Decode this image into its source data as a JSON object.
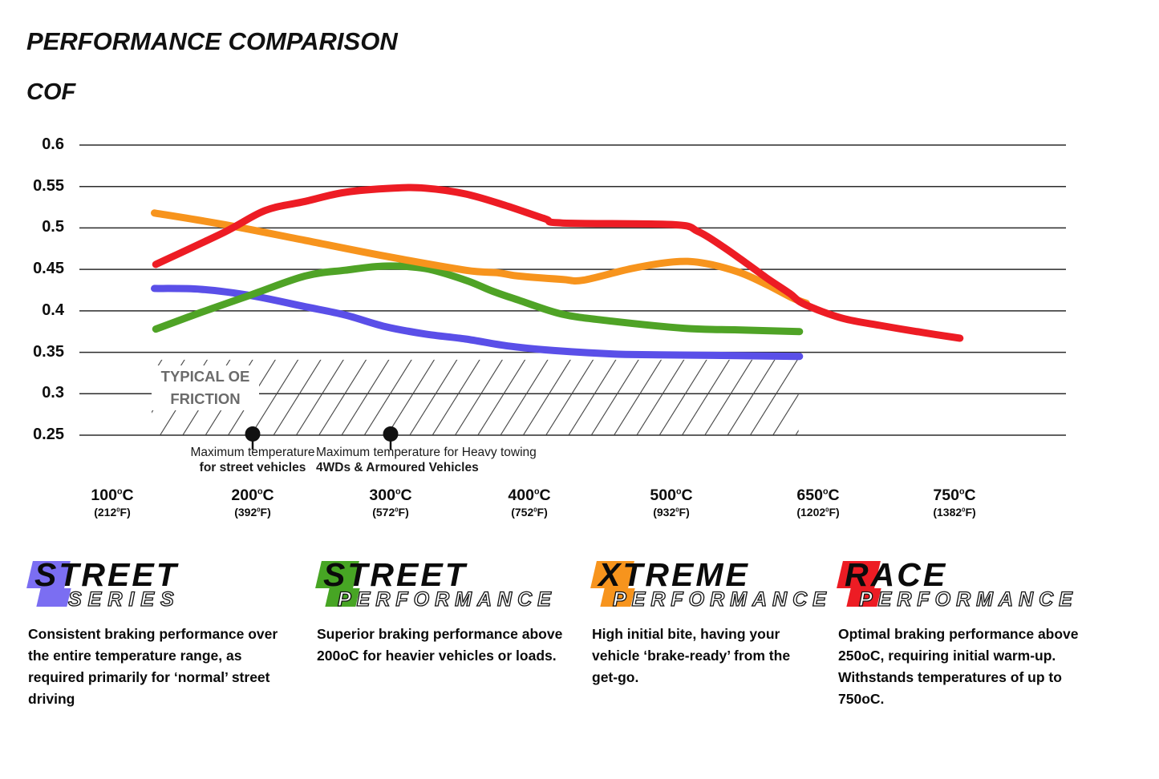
{
  "page": {
    "title": "PERFORMANCE COMPARISON",
    "y_axis_title": "COF"
  },
  "chart_data": {
    "type": "line",
    "title": "PERFORMANCE COMPARISON",
    "ylabel": "COF",
    "ylim": [
      0.25,
      0.6
    ],
    "grid": "horizontal",
    "y_ticks": [
      "0.6",
      "0.55",
      "0.5",
      "0.45",
      "0.4",
      "0.35",
      "0.3",
      "0.25"
    ],
    "y_tick_values": [
      0.6,
      0.55,
      0.5,
      0.45,
      0.4,
      0.35,
      0.3,
      0.25
    ],
    "x_tick_temps": [
      100,
      200,
      300,
      400,
      500,
      650,
      750
    ],
    "x_ticks": [
      {
        "c": "100",
        "f": "212"
      },
      {
        "c": "200",
        "f": "392"
      },
      {
        "c": "300",
        "f": "572"
      },
      {
        "c": "400",
        "f": "752"
      },
      {
        "c": "500",
        "f": "932"
      },
      {
        "c": "650",
        "f": "1202"
      },
      {
        "c": "750",
        "f": "1382"
      }
    ],
    "unit_c": {
      "sup": "o",
      "unit": "C"
    },
    "unit_f": {
      "sup": "0",
      "unit": "F",
      "open": "(",
      "close": ")"
    },
    "series": [
      {
        "name": "Street Series",
        "color": "#5a4fe8",
        "points": [
          [
            130,
            0.427
          ],
          [
            163,
            0.426
          ],
          [
            200,
            0.418
          ],
          [
            238,
            0.405
          ],
          [
            267,
            0.395
          ],
          [
            296,
            0.381
          ],
          [
            325,
            0.372
          ],
          [
            354,
            0.366
          ],
          [
            383,
            0.358
          ],
          [
            411,
            0.353
          ],
          [
            458,
            0.348
          ],
          [
            491,
            0.347
          ],
          [
            568,
            0.346
          ],
          [
            631,
            0.345
          ]
        ]
      },
      {
        "name": "Street Performance",
        "color": "#4fa326",
        "points": [
          [
            131,
            0.378
          ],
          [
            163,
            0.398
          ],
          [
            200,
            0.42
          ],
          [
            238,
            0.442
          ],
          [
            267,
            0.449
          ],
          [
            296,
            0.454
          ],
          [
            325,
            0.451
          ],
          [
            354,
            0.437
          ],
          [
            373,
            0.424
          ],
          [
            392,
            0.413
          ],
          [
            423,
            0.396
          ],
          [
            456,
            0.388
          ],
          [
            513,
            0.379
          ],
          [
            568,
            0.377
          ],
          [
            631,
            0.375
          ]
        ]
      },
      {
        "name": "Xtreme Performance",
        "color": "#f7941d",
        "points": [
          [
            130,
            0.518
          ],
          [
            180,
            0.504
          ],
          [
            238,
            0.485
          ],
          [
            296,
            0.466
          ],
          [
            354,
            0.449
          ],
          [
            377,
            0.446
          ],
          [
            392,
            0.442
          ],
          [
            423,
            0.438
          ],
          [
            438,
            0.437
          ],
          [
            472,
            0.451
          ],
          [
            502,
            0.459
          ],
          [
            531,
            0.458
          ],
          [
            568,
            0.447
          ],
          [
            597,
            0.432
          ],
          [
            623,
            0.416
          ],
          [
            638,
            0.409
          ]
        ]
      },
      {
        "name": "Race Performance",
        "color": "#ed1c24",
        "points": [
          [
            131,
            0.456
          ],
          [
            180,
            0.495
          ],
          [
            209,
            0.521
          ],
          [
            238,
            0.532
          ],
          [
            267,
            0.543
          ],
          [
            302,
            0.548
          ],
          [
            325,
            0.548
          ],
          [
            354,
            0.541
          ],
          [
            383,
            0.527
          ],
          [
            411,
            0.511
          ],
          [
            423,
            0.506
          ],
          [
            502,
            0.504
          ],
          [
            527,
            0.496
          ],
          [
            552,
            0.478
          ],
          [
            576,
            0.458
          ],
          [
            597,
            0.44
          ],
          [
            621,
            0.421
          ],
          [
            636,
            0.408
          ],
          [
            668,
            0.391
          ],
          [
            697,
            0.382
          ],
          [
            726,
            0.374
          ],
          [
            754,
            0.367
          ]
        ]
      }
    ],
    "oe_zone": {
      "label_line1": "TYPICAL OE",
      "label_line2": "FRICTION",
      "t_start": 128,
      "t_end": 630,
      "cof_top": 0.341,
      "cof_bottom": 0.25
    },
    "annotations": [
      {
        "t": 200,
        "line1": "Maximum temperature",
        "line2": "for street vehicles"
      },
      {
        "t": 300,
        "line1": "Maximum temperature for Heavy towing",
        "line2": "4WDs & Armoured Vehicles"
      }
    ]
  },
  "legend": {
    "items": [
      {
        "word1": "STREET",
        "word2": "SERIES",
        "color": "#7b6ef2",
        "description": "Consistent braking performance over the entire temperature range, as required primarily for ‘normal’ street driving"
      },
      {
        "word1": "STREET",
        "word2": "PERFORMANCE",
        "color": "#47a524",
        "description": "Superior braking performance above 200oC for heavier vehicles or loads."
      },
      {
        "word1": "XTREME",
        "word2": "PERFORMANCE",
        "color": "#f7941d",
        "description": "High initial bite, having your vehicle ‘brake-ready’ from the get-go."
      },
      {
        "word1": "RACE",
        "word2": "PERFORMANCE",
        "color": "#ed1c24",
        "description": "Optimal braking performance above 250oC, requiring initial warm-up. Withstands temperatures of up to 750oC."
      }
    ]
  }
}
